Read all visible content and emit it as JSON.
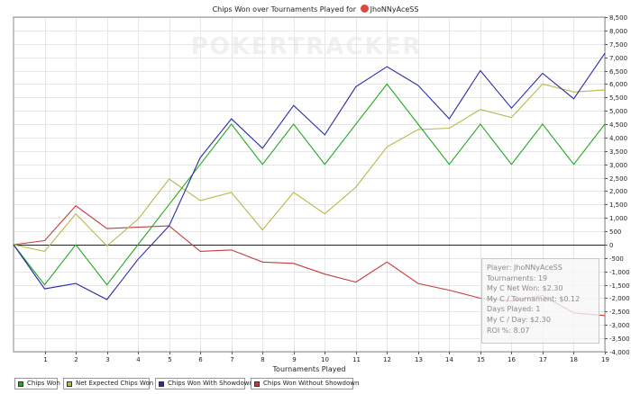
{
  "title": "Chips Won over Tournaments Played for",
  "player_name": "JhoNNyAceSS",
  "watermark": "POKERTRACKER",
  "chart_data": {
    "type": "line",
    "title": "Chips Won over Tournaments Played for JhoNNyAceSS",
    "xlabel": "Tournaments Played",
    "ylabel": "",
    "xlim": [
      0,
      19
    ],
    "ylim": [
      -4000,
      8500
    ],
    "x": [
      0,
      1,
      2,
      3,
      4,
      5,
      6,
      7,
      8,
      9,
      10,
      11,
      12,
      13,
      14,
      15,
      16,
      17,
      18,
      19
    ],
    "x_ticks": [
      1,
      2,
      3,
      4,
      5,
      6,
      7,
      8,
      9,
      10,
      11,
      12,
      13,
      14,
      15,
      16,
      17,
      18,
      19
    ],
    "y_ticks": [
      8500,
      8000,
      7500,
      7000,
      6500,
      6000,
      5500,
      5000,
      4500,
      4000,
      3500,
      3000,
      2500,
      2000,
      1500,
      1000,
      500,
      0,
      -500,
      -1000,
      -1500,
      -2000,
      -2500,
      -3000,
      -3500,
      -4000
    ],
    "y_tick_labels": [
      "8,500",
      "8,000",
      "7,500",
      "7,000",
      "6,500",
      "6,000",
      "5,500",
      "5,000",
      "4,500",
      "4,000",
      "3,500",
      "3,000",
      "2,500",
      "2,000",
      "1,500",
      "1,000",
      "500",
      "0",
      "-500",
      "-1,000",
      "-1,500",
      "-2,000",
      "-2,500",
      "-3,000",
      "-3,500",
      "-4,000"
    ],
    "grid": true,
    "legend_position": "bottom",
    "series": [
      {
        "name": "Chips Won",
        "color": "#22aa22",
        "values": [
          0,
          -1500,
          0,
          -1500,
          0,
          1500,
          3000,
          4500,
          3000,
          4500,
          3000,
          4500,
          6000,
          4500,
          3000,
          4500,
          3000,
          4500,
          3000,
          4500
        ]
      },
      {
        "name": "Net Expected Chips Won",
        "color": "#b8b84a",
        "values": [
          0,
          -250,
          1150,
          -50,
          950,
          2450,
          1650,
          1950,
          550,
          1950,
          1150,
          2150,
          3650,
          4300,
          4350,
          5050,
          4750,
          6000,
          5700,
          5780
        ]
      },
      {
        "name": "Chips Won With Showdown",
        "color": "#2a2aa8",
        "values": [
          0,
          -1650,
          -1450,
          -2050,
          -550,
          700,
          3250,
          4700,
          3600,
          5200,
          4100,
          5900,
          6650,
          5950,
          4700,
          6500,
          5100,
          6400,
          5450,
          7150
        ]
      },
      {
        "name": "Chips Won Without Showdown",
        "color": "#c43c3c",
        "values": [
          0,
          150,
          1450,
          600,
          650,
          700,
          -250,
          -200,
          -650,
          -700,
          -1100,
          -1400,
          -650,
          -1450,
          -1700,
          -2000,
          -2100,
          -1900,
          -2550,
          -2650
        ]
      }
    ]
  },
  "info_box": {
    "player": "Player: JhoNNyAceSS",
    "tournaments": "Tournaments: 19",
    "net_won": "My C Net Won: $2.30",
    "per_tournament": "My C / Tournament: $0.12",
    "days_played": "Days Played: 1",
    "per_day": "My C / Day: $2.30",
    "roi": "ROI %: 8.07"
  },
  "legend": [
    {
      "label": "Chips Won",
      "color": "#22aa22"
    },
    {
      "label": "Net Expected Chips Won",
      "color": "#b8b84a"
    },
    {
      "label": "Chips Won With Showdown",
      "color": "#2a2aa8"
    },
    {
      "label": "Chips Won Without Showdown",
      "color": "#c43c3c"
    }
  ]
}
